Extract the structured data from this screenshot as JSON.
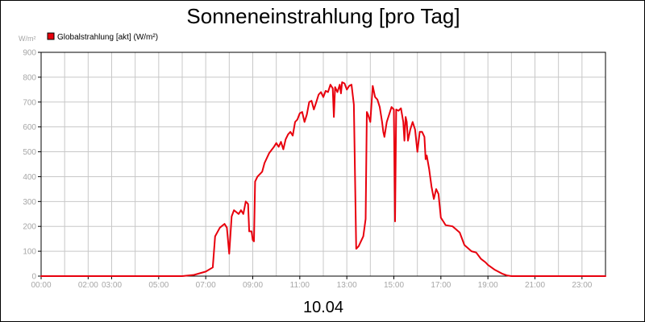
{
  "chart_data": {
    "type": "line",
    "title": "Sonneneinstrahlung [pro Tag]",
    "subtitle": "10.04",
    "ylabel": "W/m²",
    "xlabel": "",
    "ylim": [
      0,
      900
    ],
    "xlim": [
      0,
      24
    ],
    "grid": true,
    "legend_position": "top-left",
    "y_ticks": [
      0,
      100,
      200,
      300,
      400,
      500,
      600,
      700,
      800,
      900
    ],
    "x_ticks": [
      {
        "hour": 0,
        "label": "00:00"
      },
      {
        "hour": 2,
        "label": "02:00"
      },
      {
        "hour": 3,
        "label": "03:00"
      },
      {
        "hour": 5,
        "label": "05:00"
      },
      {
        "hour": 7,
        "label": "07:00"
      },
      {
        "hour": 9,
        "label": "09:00"
      },
      {
        "hour": 11,
        "label": "11:00"
      },
      {
        "hour": 13,
        "label": "13:00"
      },
      {
        "hour": 15,
        "label": "15:00"
      },
      {
        "hour": 17,
        "label": "17:00"
      },
      {
        "hour": 19,
        "label": "19:00"
      },
      {
        "hour": 21,
        "label": "21:00"
      },
      {
        "hour": 23,
        "label": "23:00"
      }
    ],
    "series": [
      {
        "name": "Globalstrahlung [akt] (W/m²)",
        "color": "#e8000d",
        "points": [
          [
            0.0,
            0
          ],
          [
            6.0,
            0
          ],
          [
            6.5,
            5
          ],
          [
            7.0,
            18
          ],
          [
            7.3,
            35
          ],
          [
            7.4,
            160
          ],
          [
            7.6,
            195
          ],
          [
            7.8,
            210
          ],
          [
            7.9,
            195
          ],
          [
            8.0,
            90
          ],
          [
            8.1,
            240
          ],
          [
            8.2,
            265
          ],
          [
            8.4,
            250
          ],
          [
            8.5,
            265
          ],
          [
            8.6,
            250
          ],
          [
            8.7,
            300
          ],
          [
            8.8,
            290
          ],
          [
            8.85,
            180
          ],
          [
            8.95,
            180
          ],
          [
            9.0,
            145
          ],
          [
            9.05,
            140
          ],
          [
            9.1,
            380
          ],
          [
            9.2,
            400
          ],
          [
            9.4,
            420
          ],
          [
            9.5,
            455
          ],
          [
            9.7,
            495
          ],
          [
            9.9,
            520
          ],
          [
            10.0,
            535
          ],
          [
            10.1,
            520
          ],
          [
            10.2,
            540
          ],
          [
            10.3,
            510
          ],
          [
            10.4,
            550
          ],
          [
            10.5,
            570
          ],
          [
            10.6,
            580
          ],
          [
            10.7,
            565
          ],
          [
            10.8,
            620
          ],
          [
            10.9,
            630
          ],
          [
            11.0,
            655
          ],
          [
            11.1,
            660
          ],
          [
            11.2,
            620
          ],
          [
            11.3,
            650
          ],
          [
            11.4,
            700
          ],
          [
            11.5,
            705
          ],
          [
            11.6,
            670
          ],
          [
            11.7,
            700
          ],
          [
            11.8,
            730
          ],
          [
            11.9,
            740
          ],
          [
            12.0,
            720
          ],
          [
            12.1,
            745
          ],
          [
            12.2,
            740
          ],
          [
            12.3,
            770
          ],
          [
            12.4,
            755
          ],
          [
            12.45,
            640
          ],
          [
            12.5,
            760
          ],
          [
            12.6,
            740
          ],
          [
            12.7,
            770
          ],
          [
            12.75,
            735
          ],
          [
            12.8,
            780
          ],
          [
            12.9,
            775
          ],
          [
            13.0,
            750
          ],
          [
            13.1,
            765
          ],
          [
            13.2,
            770
          ],
          [
            13.3,
            690
          ],
          [
            13.4,
            110
          ],
          [
            13.5,
            120
          ],
          [
            13.7,
            160
          ],
          [
            13.8,
            230
          ],
          [
            13.85,
            660
          ],
          [
            13.9,
            650
          ],
          [
            14.0,
            620
          ],
          [
            14.1,
            765
          ],
          [
            14.2,
            720
          ],
          [
            14.3,
            710
          ],
          [
            14.4,
            680
          ],
          [
            14.5,
            620
          ],
          [
            14.55,
            580
          ],
          [
            14.6,
            560
          ],
          [
            14.7,
            620
          ],
          [
            14.8,
            650
          ],
          [
            14.9,
            680
          ],
          [
            15.0,
            670
          ],
          [
            15.05,
            220
          ],
          [
            15.1,
            670
          ],
          [
            15.2,
            665
          ],
          [
            15.3,
            675
          ],
          [
            15.4,
            620
          ],
          [
            15.45,
            545
          ],
          [
            15.5,
            640
          ],
          [
            15.55,
            620
          ],
          [
            15.6,
            545
          ],
          [
            15.7,
            590
          ],
          [
            15.8,
            620
          ],
          [
            15.9,
            590
          ],
          [
            16.0,
            500
          ],
          [
            16.1,
            580
          ],
          [
            16.2,
            580
          ],
          [
            16.3,
            560
          ],
          [
            16.35,
            470
          ],
          [
            16.4,
            485
          ],
          [
            16.5,
            430
          ],
          [
            16.6,
            360
          ],
          [
            16.7,
            310
          ],
          [
            16.8,
            350
          ],
          [
            16.9,
            330
          ],
          [
            17.0,
            235
          ],
          [
            17.1,
            220
          ],
          [
            17.2,
            205
          ],
          [
            17.5,
            200
          ],
          [
            17.8,
            175
          ],
          [
            18.0,
            125
          ],
          [
            18.3,
            100
          ],
          [
            18.5,
            95
          ],
          [
            18.7,
            70
          ],
          [
            18.9,
            55
          ],
          [
            19.0,
            45
          ],
          [
            19.3,
            25
          ],
          [
            19.6,
            10
          ],
          [
            19.8,
            3
          ],
          [
            20.0,
            0
          ],
          [
            24.0,
            0
          ]
        ]
      }
    ]
  }
}
